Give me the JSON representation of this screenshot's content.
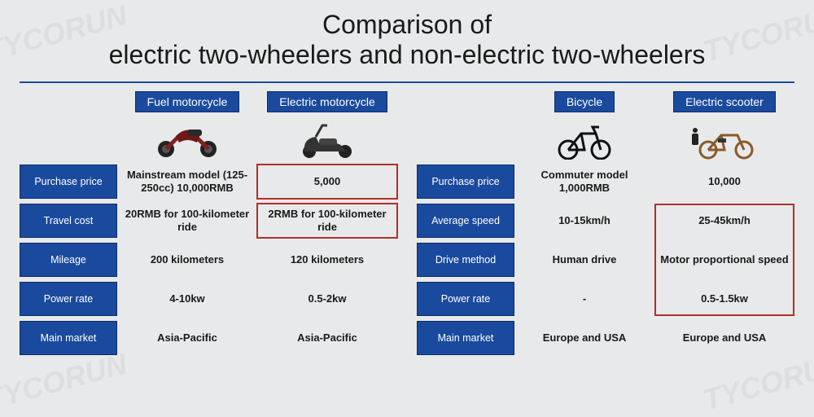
{
  "title": {
    "line1": "Comparison of",
    "line2": "electric two-wheelers and non-electric two-wheelers"
  },
  "colors": {
    "badge_bg": "#1a4a9e",
    "badge_text": "#ffffff",
    "highlight_border": "#b03028",
    "page_bg": "#e8e9ea",
    "rule": "#1a4a9e"
  },
  "watermark": "TYCORUN",
  "left": {
    "col1": {
      "label": "Fuel motorcycle",
      "icon": "motorcycle"
    },
    "col2": {
      "label": "Electric motorcycle",
      "icon": "scooter"
    },
    "rows": [
      {
        "label": "Purchase price",
        "c1": "Mainstream model (125-250cc) 10,000RMB",
        "c2": "5,000",
        "hl": "c2"
      },
      {
        "label": "Travel cost",
        "c1": "20RMB for 100-kilometer ride",
        "c2": "2RMB for 100-kilometer ride",
        "hl": "c2"
      },
      {
        "label": "Mileage",
        "c1": "200 kilometers",
        "c2": "120 kilometers"
      },
      {
        "label": "Power rate",
        "c1": "4-10kw",
        "c2": "0.5-2kw"
      },
      {
        "label": "Main market",
        "c1": "Asia-Pacific",
        "c2": "Asia-Pacific"
      }
    ]
  },
  "right": {
    "col1": {
      "label": "Bicycle",
      "icon": "bicycle"
    },
    "col2": {
      "label": "Electric scooter",
      "icon": "ebike"
    },
    "rows": [
      {
        "label": "Purchase price",
        "c1": "Commuter model 1,000RMB",
        "c2": "10,000"
      },
      {
        "label": "Average speed",
        "c1": "10-15km/h",
        "c2": "25-45km/h",
        "hl_group_start": true
      },
      {
        "label": "Drive method",
        "c1": "Human drive",
        "c2": "Motor proportional speed"
      },
      {
        "label": "Power rate",
        "c1": "-",
        "c2": "0.5-1.5kw",
        "hl_group_end": true
      },
      {
        "label": "Main market",
        "c1": "Europe and USA",
        "c2": "Europe and USA"
      }
    ]
  }
}
